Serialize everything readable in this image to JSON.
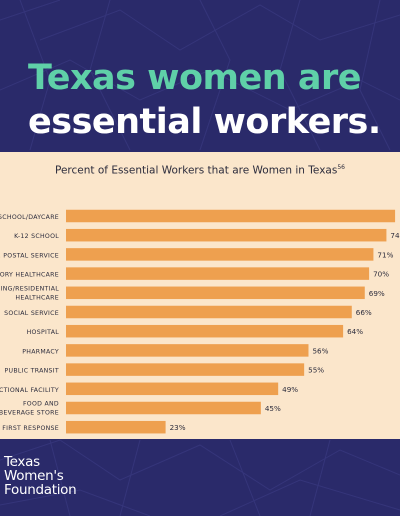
{
  "header": {
    "line1": "Texas women are",
    "line2": "essential workers."
  },
  "chart_data": {
    "type": "bar",
    "orientation": "horizontal",
    "title": "Percent of Essential Workers that are Women in Texas",
    "title_footnote": "56",
    "categories": [
      "SCHOOL/DAYCARE",
      "K-12 SCHOOL",
      ". POSTAL SERVICE",
      "TORY HEALTHCARE",
      [
        "SING/RESIDENTIAL",
        "HEALTHCARE"
      ],
      "SOCIAL SERVICE",
      "HOSPITAL",
      "PHARMACY",
      "PUBLIC TRANSIT",
      "CTIONAL FACILITY",
      [
        "FOOD AND",
        "BEVERAGE STORE"
      ],
      "FIRST RESPONSE"
    ],
    "values": [
      76,
      74,
      71,
      70,
      69,
      66,
      64,
      56,
      55,
      49,
      45,
      23
    ],
    "value_labels": [
      "",
      "74",
      "71%",
      "70%",
      "69%",
      "66%",
      "64%",
      "56%",
      "55%",
      "49%",
      "45%",
      "23%"
    ],
    "ylim": [
      0,
      100
    ],
    "grid": false,
    "legend": "none",
    "colors": {
      "bar": "#eea04f",
      "label": "#2c2c3c"
    }
  },
  "footer": {
    "logo_line1": "Texas",
    "logo_line2": "Women's",
    "logo_line3": "Foundation"
  },
  "colors": {
    "background": "#2a2a6a",
    "panel": "#fbe6cb",
    "accent_green": "#5fd0a8"
  }
}
